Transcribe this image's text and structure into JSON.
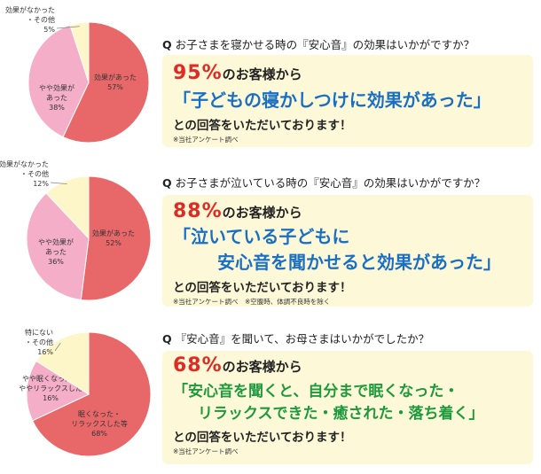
{
  "colors": {
    "slice_main": "#e8686a",
    "slice_mid": "#f4aec8",
    "slice_other": "#fdf6c9",
    "quote_blue": "#1a6fc4",
    "quote_green": "#1c9a3c",
    "accent_red": "#e12a24",
    "box_bg": "#fdf9d8"
  },
  "sections": [
    {
      "question_prefix": "Q",
      "question": "お子さまを寝かせる時の『安心音』の効果はいかがですか？",
      "percent": "95%",
      "lead_rest": "のお客様から",
      "quote_lines": [
        "「子どもの寝かしつけに効果があった」"
      ],
      "answer": "との回答をいただいております！",
      "note": "※当社アンケート調べ"
    },
    {
      "question_prefix": "Q",
      "question": "お子さまが泣いている時の『安心音』の効果はいかがですか？",
      "percent": "88%",
      "lead_rest": "のお客様から",
      "quote_lines": [
        "「泣いている子どもに",
        "安心音を聞かせると効果があった」"
      ],
      "answer": "との回答をいただいております！",
      "note": "※当社アンケート調べ　※空腹時、体調不良時を除く"
    },
    {
      "question_prefix": "Q",
      "question": "『安心音』を聞いて、お母さまはいかがでしたか？",
      "percent": "68%",
      "lead_rest": "のお客様から",
      "quote_lines": [
        "「安心音を聞くと、自分まで眠くなった・",
        "リラックスできた・癒された・落ち着く」"
      ],
      "answer": "との回答をいただいております！",
      "note": "※当社アンケート調べ"
    }
  ],
  "chart_data": [
    {
      "type": "pie",
      "slices": [
        {
          "label": [
            "効果があった"
          ],
          "value": 57,
          "display": "57%"
        },
        {
          "label": [
            "やや効果が",
            "あった"
          ],
          "value": 38,
          "display": "38%"
        },
        {
          "label": [
            "効果がなかった",
            "・その他"
          ],
          "value": 5,
          "display": "5%"
        }
      ]
    },
    {
      "type": "pie",
      "slices": [
        {
          "label": [
            "効果があった"
          ],
          "value": 52,
          "display": "52%"
        },
        {
          "label": [
            "やや効果が",
            "あった"
          ],
          "value": 36,
          "display": "36%"
        },
        {
          "label": [
            "効果がなかった",
            "・その他"
          ],
          "value": 12,
          "display": "12%"
        }
      ]
    },
    {
      "type": "pie",
      "slices": [
        {
          "label": [
            "眠くなった・",
            "リラックスした等"
          ],
          "value": 68,
          "display": "68%"
        },
        {
          "label": [
            "やや眠くなった・",
            "ややリラックスした"
          ],
          "value": 16,
          "display": "16%"
        },
        {
          "label": [
            "特にない",
            "・その他"
          ],
          "value": 16,
          "display": "16%"
        }
      ]
    }
  ]
}
